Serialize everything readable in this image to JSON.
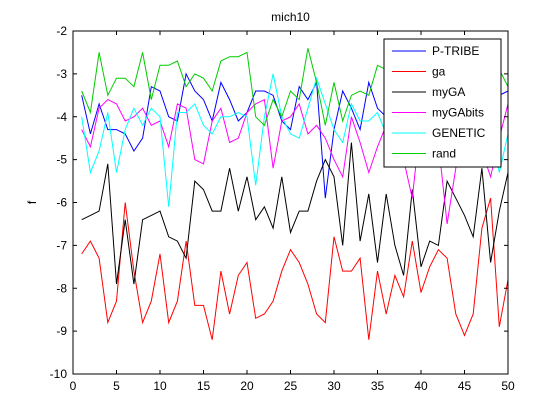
{
  "chart_data": {
    "type": "line",
    "title": "mich10",
    "xlabel": "",
    "ylabel": "f",
    "xlim": [
      0,
      50
    ],
    "ylim": [
      -10,
      -2
    ],
    "xticks": [
      0,
      5,
      10,
      15,
      20,
      25,
      30,
      35,
      40,
      45,
      50
    ],
    "yticks": [
      -10,
      -9,
      -8,
      -7,
      -6,
      -5,
      -4,
      -3,
      -2
    ],
    "grid": false,
    "legend_position": "top-right",
    "x": [
      1,
      2,
      3,
      4,
      5,
      6,
      7,
      8,
      9,
      10,
      11,
      12,
      13,
      14,
      15,
      16,
      17,
      18,
      19,
      20,
      21,
      22,
      23,
      24,
      25,
      26,
      27,
      28,
      29,
      30,
      31,
      32,
      33,
      34,
      35,
      36,
      37,
      38,
      39,
      40,
      41,
      42,
      43,
      44,
      45,
      46,
      47,
      48,
      49,
      50
    ],
    "series": [
      {
        "name": "P-TRIBE",
        "color": "#0000ff",
        "values": [
          -3.5,
          -4.4,
          -3.7,
          -4.3,
          -4.3,
          -4.4,
          -4.8,
          -4.5,
          -3.3,
          -3.4,
          -4.0,
          -4.1,
          -3.0,
          -3.4,
          -3.6,
          -4.1,
          -3.2,
          -3.6,
          -4.1,
          -3.9,
          -3.4,
          -3.4,
          -3.5,
          -4.1,
          -4.3,
          -3.3,
          -3.6,
          -3.2,
          -5.9,
          -4.3,
          -3.4,
          -3.8,
          -4.3,
          -3.2,
          -3.8,
          -4.0,
          -4.2,
          -5.1,
          -4.9,
          -4.8,
          -4.6,
          -4.5,
          -4.4,
          -4.3,
          -4.2,
          -4.1,
          -4.0,
          -3.9,
          -3.5,
          -3.4
        ]
      },
      {
        "name": "ga",
        "color": "#ff0000",
        "values": [
          -7.2,
          -6.9,
          -7.3,
          -8.8,
          -8.3,
          -6.0,
          -7.6,
          -8.8,
          -8.3,
          -7.2,
          -8.8,
          -8.3,
          -6.9,
          -8.4,
          -8.4,
          -9.2,
          -7.6,
          -8.6,
          -7.7,
          -7.4,
          -8.7,
          -8.6,
          -8.3,
          -7.6,
          -7.1,
          -7.4,
          -7.9,
          -8.6,
          -8.8,
          -6.8,
          -7.6,
          -7.6,
          -7.3,
          -9.2,
          -7.6,
          -8.6,
          -7.7,
          -8.2,
          -6.9,
          -8.1,
          -7.5,
          -7.1,
          -7.3,
          -8.6,
          -9.1,
          -8.6,
          -6.6,
          -5.9,
          -8.9,
          -7.8
        ]
      },
      {
        "name": "myGA",
        "color": "#000000",
        "values": [
          -6.4,
          -6.3,
          -6.2,
          -5.1,
          -7.9,
          -6.4,
          -7.9,
          -6.4,
          -6.3,
          -6.2,
          -6.8,
          -6.9,
          -7.3,
          -5.5,
          -5.7,
          -6.2,
          -6.2,
          -5.2,
          -6.2,
          -5.4,
          -6.4,
          -6.1,
          -6.6,
          -5.4,
          -6.7,
          -6.2,
          -6.2,
          -5.5,
          -5.0,
          -5.4,
          -7.0,
          -4.6,
          -6.9,
          -5.8,
          -7.4,
          -5.8,
          -7.0,
          -7.7,
          -5.7,
          -7.5,
          -6.9,
          -7.0,
          -5.5,
          -5.9,
          -6.3,
          -6.8,
          -5.2,
          -7.4,
          -6.2,
          -5.3
        ]
      },
      {
        "name": "myGAbits",
        "color": "#ff00ff",
        "values": [
          -4.3,
          -4.7,
          -3.8,
          -3.6,
          -3.7,
          -4.1,
          -4.0,
          -3.8,
          -4.2,
          -4.1,
          -4.7,
          -3.7,
          -3.8,
          -5.0,
          -5.1,
          -4.1,
          -3.8,
          -4.6,
          -4.5,
          -3.9,
          -3.7,
          -3.6,
          -5.2,
          -4.1,
          -4.0,
          -3.7,
          -4.4,
          -4.2,
          -4.5,
          -5.0,
          -5.4,
          -4.0,
          -4.6,
          -5.3,
          -4.7,
          -4.2,
          -4.4,
          -5.0,
          -5.9,
          -4.0,
          -4.1,
          -4.6,
          -6.5,
          -5.2,
          -4.4,
          -4.0,
          -4.8,
          -5.4,
          -4.5,
          -3.7
        ]
      },
      {
        "name": "GENETIC",
        "color": "#00ffff",
        "values": [
          -4.0,
          -5.3,
          -4.8,
          -3.9,
          -5.3,
          -4.3,
          -3.8,
          -4.2,
          -3.8,
          -4.0,
          -6.1,
          -3.9,
          -3.9,
          -3.7,
          -4.2,
          -4.4,
          -4.0,
          -4.0,
          -3.9,
          -4.0,
          -5.6,
          -4.0,
          -3.0,
          -4.0,
          -4.4,
          -4.5,
          -3.8,
          -3.1,
          -3.7,
          -4.3,
          -4.6,
          -3.7,
          -4.1,
          -4.1,
          -3.9,
          -4.4,
          -4.3,
          -4.6,
          -3.8,
          -4.1,
          -4.4,
          -4.4,
          -3.9,
          -4.2,
          -4.6,
          -4.8,
          -4.4,
          -4.2,
          -5.3,
          -4.4
        ]
      },
      {
        "name": "rand",
        "color": "#00cc00",
        "values": [
          -3.4,
          -3.9,
          -2.5,
          -3.5,
          -3.1,
          -3.1,
          -3.3,
          -2.5,
          -3.6,
          -2.8,
          -2.8,
          -2.7,
          -3.3,
          -3.0,
          -3.1,
          -3.4,
          -2.7,
          -2.6,
          -2.6,
          -2.5,
          -4.0,
          -4.2,
          -3.6,
          -4.0,
          -3.4,
          -3.6,
          -2.4,
          -3.2,
          -4.2,
          -3.2,
          -4.1,
          -3.5,
          -3.4,
          -3.5,
          -2.8,
          -2.9,
          -3.2,
          -3.8,
          -3.1,
          -2.9,
          -3.4,
          -3.6,
          -2.9,
          -4.3,
          -3.7,
          -3.2,
          -3.6,
          -3.4,
          -2.9,
          -3.3
        ]
      }
    ]
  }
}
